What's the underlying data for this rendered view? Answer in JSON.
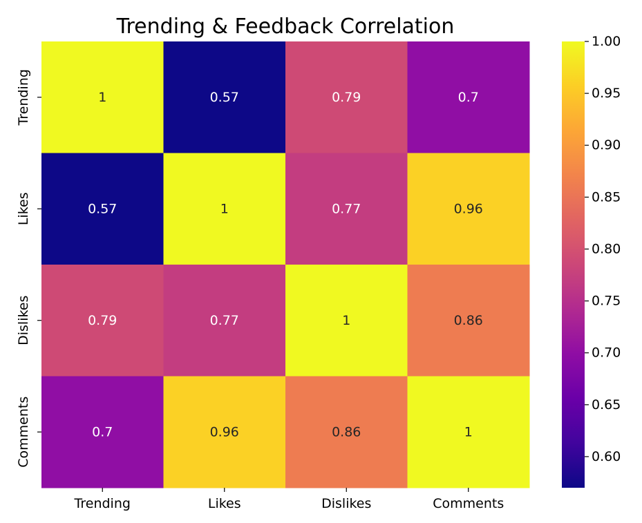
{
  "chart_data": {
    "type": "heatmap",
    "title": "Trending & Feedback Correlation",
    "xlabel": "",
    "ylabel": "",
    "x_categories": [
      "Trending",
      "Likes",
      "Dislikes",
      "Comments"
    ],
    "y_categories": [
      "Trending",
      "Likes",
      "Dislikes",
      "Comments"
    ],
    "values": [
      [
        1,
        0.57,
        0.79,
        0.7
      ],
      [
        0.57,
        1,
        0.77,
        0.96
      ],
      [
        0.79,
        0.77,
        1,
        0.86
      ],
      [
        0.7,
        0.96,
        0.86,
        1
      ]
    ],
    "annotations": [
      [
        "1",
        "0.57",
        "0.79",
        "0.7"
      ],
      [
        "0.57",
        "1",
        "0.77",
        "0.96"
      ],
      [
        "0.79",
        "0.77",
        "1",
        "0.86"
      ],
      [
        "0.7",
        "0.96",
        "0.86",
        "1"
      ]
    ],
    "colormap": "plasma",
    "vmin": 0.57,
    "vmax": 1.0,
    "colorbar": {
      "ticks": [
        0.6,
        0.65,
        0.7,
        0.75,
        0.8,
        0.85,
        0.9,
        0.95,
        1.0
      ],
      "tick_labels": [
        "0.60",
        "0.65",
        "0.70",
        "0.75",
        "0.80",
        "0.85",
        "0.90",
        "0.95",
        "1.00"
      ],
      "placement": "right"
    },
    "colors": {
      "plasma_stops": [
        "#0d0887",
        "#41049d",
        "#6a00a8",
        "#8f0da4",
        "#b12a90",
        "#cc4778",
        "#e16462",
        "#f2844b",
        "#fca636",
        "#fcce25",
        "#f0f921"
      ],
      "text_light": "#ffffff",
      "text_dark": "#262626"
    },
    "grid": false
  }
}
